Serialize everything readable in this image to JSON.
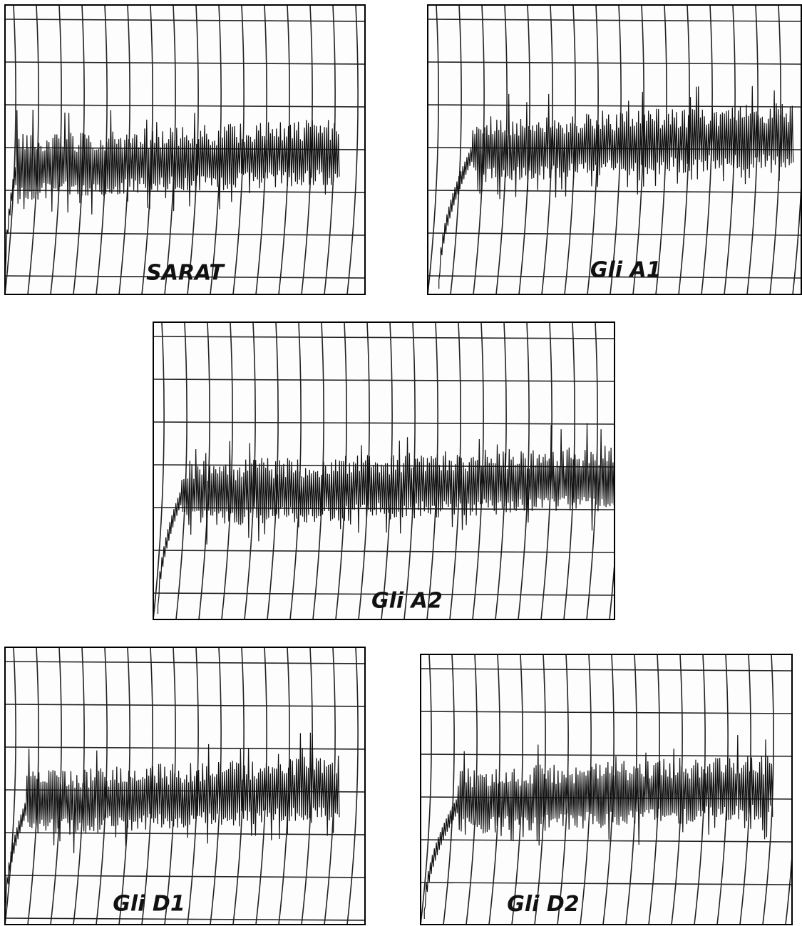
{
  "panels": [
    {
      "label": "SARAT"
    },
    {
      "label": "Gli A1"
    },
    {
      "label": "Gli A2"
    },
    {
      "label": "Gli D1"
    },
    {
      "label": "Gli D2"
    }
  ]
}
